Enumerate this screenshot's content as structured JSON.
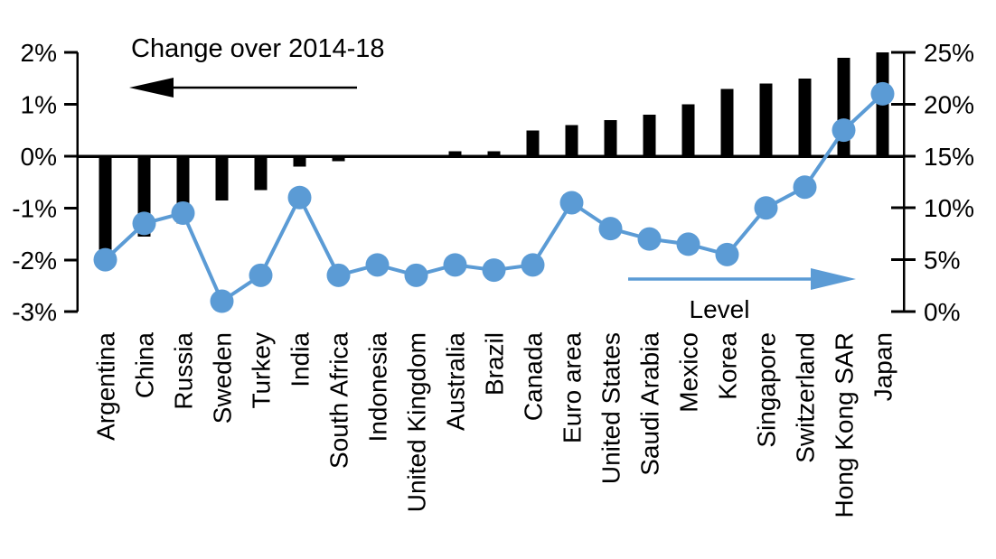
{
  "chart_data": {
    "type": "bar",
    "subtype": "combo-bar-line-dual-axis",
    "categories": [
      "Argentina",
      "China",
      "Russia",
      "Sweden",
      "Turkey",
      "India",
      "South Africa",
      "Indonesia",
      "United Kingdom",
      "Australia",
      "Brazil",
      "Canada",
      "Euro area",
      "United States",
      "Saudi Arabia",
      "Mexico",
      "Korea",
      "Singapore",
      "Switzerland",
      "Hong Kong SAR",
      "Japan"
    ],
    "series": [
      {
        "name": "Change over 2014-18",
        "type": "bar",
        "axis": "left",
        "unit": "%",
        "color": "#000000",
        "values": [
          -1.8,
          -1.55,
          -1.3,
          -0.85,
          -0.65,
          -0.2,
          -0.1,
          0,
          0,
          0.1,
          0.1,
          0.5,
          0.6,
          0.7,
          0.8,
          1.0,
          1.3,
          1.4,
          1.5,
          1.9,
          2.0
        ]
      },
      {
        "name": "Level",
        "type": "line",
        "axis": "right",
        "unit": "%",
        "color": "#5B9BD5",
        "values": [
          5,
          8.5,
          9.5,
          1,
          3.5,
          11,
          3.5,
          4.5,
          3.5,
          4.5,
          4,
          4.5,
          10.5,
          8,
          7,
          6.5,
          5.5,
          10,
          12,
          17.5,
          21
        ]
      }
    ],
    "left_axis": {
      "min": -3,
      "max": 2,
      "tick_values": [
        2,
        1,
        0,
        -1,
        -2,
        -3
      ],
      "tick_labels": [
        "2%",
        "1%",
        "0%",
        "-1%",
        "-2%",
        "-3%"
      ]
    },
    "right_axis": {
      "min": 0,
      "max": 25,
      "tick_values": [
        25,
        20,
        15,
        10,
        5,
        0
      ],
      "tick_labels": [
        "25%",
        "20%",
        "15%",
        "10%",
        "5%",
        "0%"
      ]
    },
    "grid": "none",
    "legend_style": "in-plot text annotations with directional arrows",
    "annotations": [
      {
        "text": "Change over 2014-18",
        "arrow_direction": "left",
        "color": "#000000"
      },
      {
        "text": "Level",
        "arrow_direction": "right",
        "color": "#5B9BD5"
      }
    ]
  }
}
